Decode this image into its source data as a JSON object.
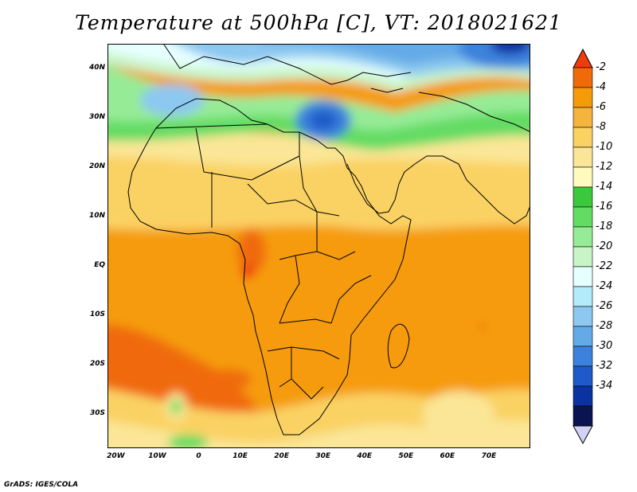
{
  "title": "Temperature at 500hPa [C], VT: 2018021621",
  "footer": "GrADS: IGES/COLA",
  "lat_ticks": [
    {
      "label": "40N",
      "lat": 40
    },
    {
      "label": "30N",
      "lat": 30
    },
    {
      "label": "20N",
      "lat": 20
    },
    {
      "label": "10N",
      "lat": 10
    },
    {
      "label": "EQ",
      "lat": 0
    },
    {
      "label": "10S",
      "lat": -10
    },
    {
      "label": "20S",
      "lat": -20
    },
    {
      "label": "30S",
      "lat": -30
    }
  ],
  "lon_ticks": [
    {
      "label": "20W",
      "lon": -20
    },
    {
      "label": "10W",
      "lon": -10
    },
    {
      "label": "0",
      "lon": 0
    },
    {
      "label": "10E",
      "lon": 10
    },
    {
      "label": "20E",
      "lon": 20
    },
    {
      "label": "30E",
      "lon": 30
    },
    {
      "label": "40E",
      "lon": 40
    },
    {
      "label": "50E",
      "lon": 50
    },
    {
      "label": "60E",
      "lon": 60
    },
    {
      "label": "70E",
      "lon": 70
    }
  ],
  "extent": {
    "lon_min": -22,
    "lon_max": 80,
    "lat_min": -37,
    "lat_max": 45
  },
  "colorbar": {
    "levels": [
      "-2",
      "-4",
      "-6",
      "-8",
      "-10",
      "-12",
      "-14",
      "-16",
      "-18",
      "-20",
      "-22",
      "-24",
      "-26",
      "-28",
      "-30",
      "-32",
      "-34"
    ],
    "colors": [
      "#f03c0a",
      "#f06a0a",
      "#f59b0a",
      "#f5b43c",
      "#fad264",
      "#fae696",
      "#fffabe",
      "#3cc83c",
      "#64dc64",
      "#96eb96",
      "#c8f5c8",
      "#e6ffff",
      "#b4ebfa",
      "#8cc8f0",
      "#64aae6",
      "#3c82dc",
      "#1e5ac8",
      "#0a32a0",
      "#0a1450",
      "#d2d2f5"
    ]
  }
}
